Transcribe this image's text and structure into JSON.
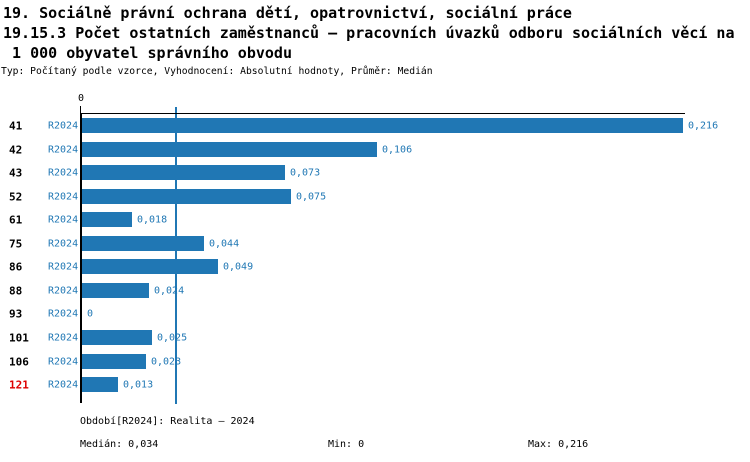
{
  "title": {
    "line1": "19. Sociálně právní ochrana dětí, opatrovnictví, sociální práce",
    "line2": "19.15.3 Počet ostatních zaměstnanců – pracovních úvazků odboru sociálních věcí na",
    "line3": " 1 000 obyvatel správního obvodu",
    "meta": "Typ: Počítaný podle vzorce, Vyhodnocení: Absolutní hodnoty, Průměr: Medián"
  },
  "chart_data": {
    "type": "bar",
    "orientation": "horizontal",
    "categories": [
      "41",
      "42",
      "43",
      "52",
      "61",
      "75",
      "86",
      "88",
      "93",
      "101",
      "106",
      "121"
    ],
    "series": [
      {
        "name": "R2024",
        "values": [
          0.216,
          0.106,
          0.073,
          0.075,
          0.018,
          0.044,
          0.049,
          0.024,
          0,
          0.025,
          0.023,
          0.013
        ]
      }
    ],
    "value_labels": [
      "0,216",
      "0,106",
      "0,073",
      "0,075",
      "0,018",
      "0,044",
      "0,049",
      "0,024",
      "0",
      "0,025",
      "0,023",
      "0,013"
    ],
    "series_label": "R2024",
    "highlighted_category": "121",
    "axis_zero_label": "0",
    "xlim": [
      0,
      0.216
    ],
    "median_value": 0.034,
    "grid": "median-line-only",
    "legend_position": "none",
    "bar_color": "#2077b4",
    "label_color": "#1f77b4",
    "highlight_color": "#dd0000",
    "axis_color": "#000000"
  },
  "footer": {
    "period": "Období[R2024]: Realita – 2024",
    "median": "Medián: 0,034",
    "min": "Min: 0",
    "max": "Max: 0,216"
  }
}
